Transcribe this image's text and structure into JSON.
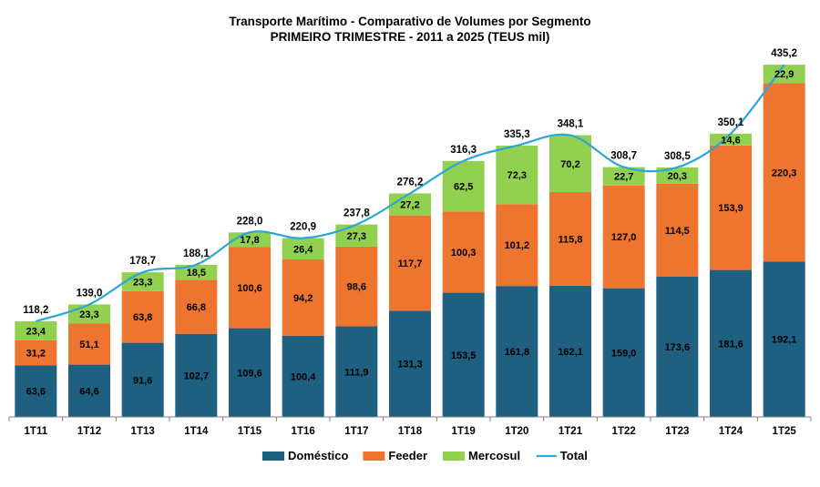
{
  "chart_data": {
    "type": "bar",
    "stacked": true,
    "title": "Transporte Marítimo - Comparativo de Volumes por Segmento",
    "subtitle": "PRIMEIRO TRIMESTRE - 2011 a 2025 (TEUS mil)",
    "categories": [
      "1T11",
      "1T12",
      "1T13",
      "1T14",
      "1T15",
      "1T16",
      "1T17",
      "1T18",
      "1T19",
      "1T20",
      "1T21",
      "1T22",
      "1T23",
      "1T24",
      "1T25"
    ],
    "series": [
      {
        "name": "Doméstico",
        "color": "#1F5F80",
        "values": [
          "63,6",
          "64,6",
          "91,6",
          "102,7",
          "109,6",
          "100,4",
          "111,9",
          "131,3",
          "153,5",
          "161,8",
          "162,1",
          "159,0",
          "173,6",
          "181,6",
          "192,1"
        ]
      },
      {
        "name": "Feeder",
        "color": "#ED7530",
        "values": [
          "31,2",
          "51,1",
          "63,8",
          "66,8",
          "100,6",
          "94,2",
          "98,6",
          "117,7",
          "100,3",
          "101,2",
          "115,8",
          "127,0",
          "114,5",
          "153,9",
          "220,3"
        ]
      },
      {
        "name": "Mercosul",
        "color": "#92D050",
        "values": [
          "23,4",
          "23,3",
          "23,3",
          "18,5",
          "17,8",
          "26,4",
          "27,3",
          "27,2",
          "62,5",
          "72,3",
          "70,2",
          "22,7",
          "20,3",
          "14,6",
          "22,9"
        ]
      }
    ],
    "total": {
      "name": "Total",
      "color": "#2CA5D8",
      "values": [
        "118,2",
        "139,0",
        "178,7",
        "188,1",
        "228,0",
        "220,9",
        "237,8",
        "276,2",
        "316,3",
        "335,3",
        "348,1",
        "308,7",
        "308,5",
        "350,1",
        "435,2"
      ]
    },
    "ylim": [
      0,
      450
    ],
    "xlabel": "",
    "ylabel": "",
    "grid": false,
    "legend": "bottom"
  }
}
